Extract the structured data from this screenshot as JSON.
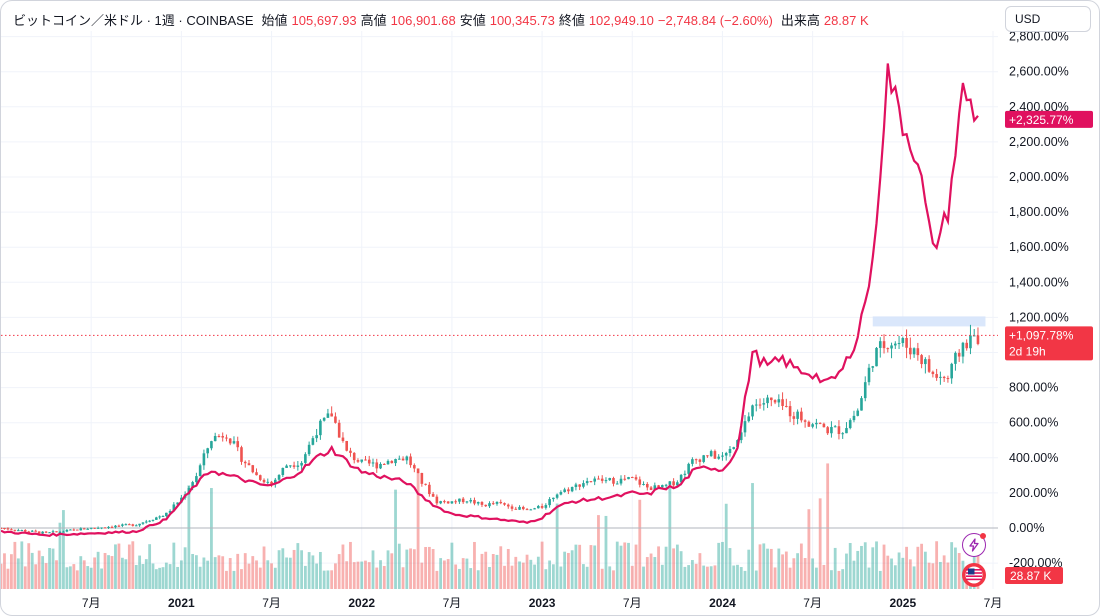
{
  "legend": {
    "symbol": "ビットコイン／米ドル · 1週 · COINBASE",
    "open_label": "始値",
    "open": "105,697.93",
    "high_label": "高値",
    "high": "106,901.68",
    "low_label": "安値",
    "low": "100,345.73",
    "close_label": "終値",
    "close": "102,949.10",
    "change": "−2,748.84 (−2.60%)",
    "volume_label": "出来高",
    "volume": "28.87 K"
  },
  "currency_button": "USD",
  "price_tags": {
    "compare": "+2,325.77%",
    "main": "+1,097.78%",
    "countdown": "2d 19h",
    "volume": "28.87 K"
  },
  "colors": {
    "up": "#26a69a",
    "down": "#ef5350",
    "compare_line": "#e0115f",
    "current_line": "#f23645",
    "grid": "#f0f3fa"
  },
  "icons": [
    "lightning-icon",
    "us-flag-icon"
  ],
  "chart_data": {
    "type": "line",
    "title": "",
    "y_axis": {
      "unit": "percent",
      "ticks": [
        "2,800.00%",
        "2,600.00%",
        "2,400.00%",
        "2,200.00%",
        "2,000.00%",
        "1,800.00%",
        "1,600.00%",
        "1,400.00%",
        "1,200.00%",
        "1,000.00%",
        "800.00%",
        "600.00%",
        "400.00%",
        "200.00%",
        "0.00%",
        "-200.00%"
      ],
      "tick_values": [
        2800,
        2600,
        2400,
        2200,
        2000,
        1800,
        1600,
        1400,
        1200,
        1000,
        800,
        600,
        400,
        200,
        0,
        -200
      ],
      "range": [
        -200,
        2800
      ]
    },
    "x_axis": {
      "ticks": [
        "7月",
        "2021",
        "7月",
        "2022",
        "7月",
        "2023",
        "7月",
        "2024",
        "7月",
        "2025",
        "7月"
      ],
      "tick_dates": [
        "2020-07",
        "2021-01",
        "2021-07",
        "2022-01",
        "2022-07",
        "2023-01",
        "2023-07",
        "2024-01",
        "2024-07",
        "2025-01",
        "2025-07"
      ],
      "year_ticks": [
        "2021",
        "2022",
        "2023",
        "2024",
        "2025"
      ],
      "range": [
        "2020-01",
        "2025-07"
      ]
    },
    "series": [
      {
        "kind": "candlestick",
        "values_percent": [
          [
            "2020-01",
            0
          ],
          [
            "2020-04",
            -30
          ],
          [
            "2020-07",
            0
          ],
          [
            "2020-10",
            20
          ],
          [
            "2020-12",
            80
          ],
          [
            "2021-01",
            170
          ],
          [
            "2021-02",
            300
          ],
          [
            "2021-03",
            510
          ],
          [
            "2021-04",
            540
          ],
          [
            "2021-05",
            400
          ],
          [
            "2021-06",
            300
          ],
          [
            "2021-07",
            250
          ],
          [
            "2021-08",
            360
          ],
          [
            "2021-09",
            380
          ],
          [
            "2021-10",
            560
          ],
          [
            "2021-11",
            650
          ],
          [
            "2021-12",
            430
          ],
          [
            "2022-01",
            370
          ],
          [
            "2022-02",
            360
          ],
          [
            "2022-03",
            390
          ],
          [
            "2022-04",
            400
          ],
          [
            "2022-05",
            260
          ],
          [
            "2022-06",
            150
          ],
          [
            "2022-07",
            150
          ],
          [
            "2022-08",
            160
          ],
          [
            "2022-09",
            130
          ],
          [
            "2022-10",
            140
          ],
          [
            "2022-11",
            120
          ],
          [
            "2022-12",
            100
          ],
          [
            "2023-01",
            120
          ],
          [
            "2023-02",
            200
          ],
          [
            "2023-03",
            230
          ],
          [
            "2023-04",
            270
          ],
          [
            "2023-05",
            270
          ],
          [
            "2023-06",
            270
          ],
          [
            "2023-07",
            280
          ],
          [
            "2023-08",
            230
          ],
          [
            "2023-09",
            230
          ],
          [
            "2023-10",
            270
          ],
          [
            "2023-11",
            380
          ],
          [
            "2023-12",
            420
          ],
          [
            "2024-01",
            400
          ],
          [
            "2024-02",
            480
          ],
          [
            "2024-03",
            700
          ],
          [
            "2024-04",
            720
          ],
          [
            "2024-05",
            690
          ],
          [
            "2024-06",
            640
          ],
          [
            "2024-07",
            600
          ],
          [
            "2024-08",
            560
          ],
          [
            "2024-09",
            560
          ],
          [
            "2024-10",
            670
          ],
          [
            "2024-11",
            970
          ],
          [
            "2024-12",
            1070
          ],
          [
            "2025-01",
            1050
          ],
          [
            "2025-02",
            1000
          ],
          [
            "2025-03",
            870
          ],
          [
            "2025-04",
            850
          ],
          [
            "2025-05",
            1050
          ],
          [
            "2025-06",
            1097.78
          ]
        ]
      },
      {
        "kind": "line",
        "values_percent": [
          [
            "2020-01",
            -20
          ],
          [
            "2020-04",
            -40
          ],
          [
            "2020-07",
            -30
          ],
          [
            "2020-10",
            -20
          ],
          [
            "2020-12",
            50
          ],
          [
            "2021-01",
            150
          ],
          [
            "2021-02",
            250
          ],
          [
            "2021-03",
            330
          ],
          [
            "2021-04",
            300
          ],
          [
            "2021-05",
            280
          ],
          [
            "2021-06",
            250
          ],
          [
            "2021-07",
            240
          ],
          [
            "2021-08",
            280
          ],
          [
            "2021-09",
            330
          ],
          [
            "2021-10",
            400
          ],
          [
            "2021-11",
            450
          ],
          [
            "2021-12",
            380
          ],
          [
            "2022-01",
            320
          ],
          [
            "2022-02",
            300
          ],
          [
            "2022-03",
            280
          ],
          [
            "2022-04",
            260
          ],
          [
            "2022-05",
            180
          ],
          [
            "2022-06",
            120
          ],
          [
            "2022-07",
            80
          ],
          [
            "2022-08",
            70
          ],
          [
            "2022-09",
            60
          ],
          [
            "2022-10",
            50
          ],
          [
            "2022-11",
            40
          ],
          [
            "2022-12",
            30
          ],
          [
            "2023-01",
            60
          ],
          [
            "2023-02",
            120
          ],
          [
            "2023-03",
            150
          ],
          [
            "2023-04",
            160
          ],
          [
            "2023-05",
            170
          ],
          [
            "2023-06",
            180
          ],
          [
            "2023-07",
            200
          ],
          [
            "2023-08",
            190
          ],
          [
            "2023-09",
            230
          ],
          [
            "2023-10",
            230
          ],
          [
            "2023-11",
            320
          ],
          [
            "2023-12",
            350
          ],
          [
            "2024-01",
            330
          ],
          [
            "2024-02",
            450
          ],
          [
            "2024-03",
            1000
          ],
          [
            "2024-04",
            920
          ],
          [
            "2024-05",
            960
          ],
          [
            "2024-06",
            900
          ],
          [
            "2024-07",
            880
          ],
          [
            "2024-08",
            820
          ],
          [
            "2024-09",
            900
          ],
          [
            "2024-10",
            1100
          ],
          [
            "2024-11",
            1500
          ],
          [
            "2024-12",
            2600
          ],
          [
            "2025-01",
            2300
          ],
          [
            "2025-02",
            2100
          ],
          [
            "2025-03",
            1580
          ],
          [
            "2025-04",
            1800
          ],
          [
            "2025-05",
            2500
          ],
          [
            "2025-06",
            2325.77
          ]
        ]
      }
    ],
    "volume": {
      "last": "28.87 K"
    }
  }
}
